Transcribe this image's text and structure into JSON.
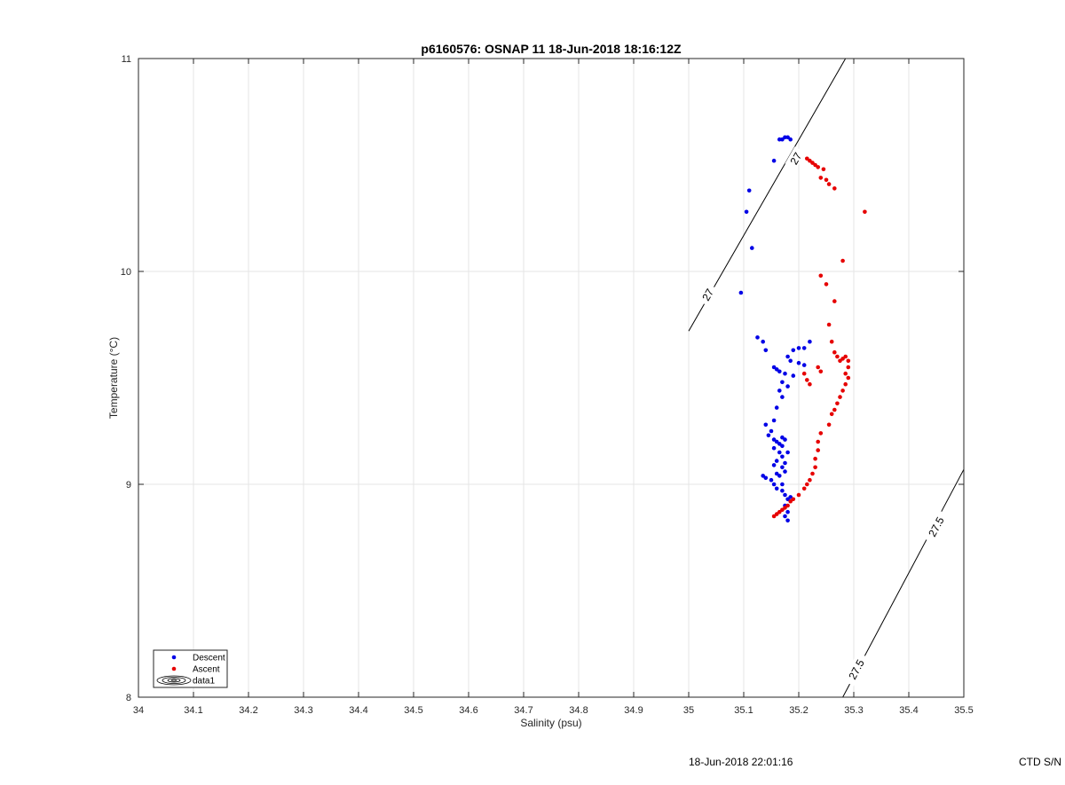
{
  "chart_data": {
    "type": "scatter",
    "title": "p6160576: OSNAP 11 18-Jun-2018 18:16:12Z",
    "xlabel": "Salinity (psu)",
    "ylabel": "Temperature (°C)",
    "xlim": [
      34,
      35.5
    ],
    "ylim": [
      8,
      11
    ],
    "x_ticks": [
      "34",
      "34.1",
      "34.2",
      "34.3",
      "34.4",
      "34.5",
      "34.6",
      "34.7",
      "34.8",
      "34.9",
      "35",
      "35.1",
      "35.2",
      "35.3",
      "35.4",
      "35.5"
    ],
    "y_ticks": [
      "8",
      "9",
      "10",
      "11"
    ],
    "grid": true,
    "legend_position": "bottom-left",
    "series": [
      {
        "name": "Descent",
        "color": "#0000e6",
        "points": [
          [
            35.17,
            10.62
          ],
          [
            35.175,
            10.63
          ],
          [
            35.18,
            10.63
          ],
          [
            35.185,
            10.62
          ],
          [
            35.165,
            10.62
          ],
          [
            35.155,
            10.52
          ],
          [
            35.11,
            10.38
          ],
          [
            35.105,
            10.28
          ],
          [
            35.115,
            10.11
          ],
          [
            35.095,
            9.9
          ],
          [
            35.125,
            9.69
          ],
          [
            35.135,
            9.67
          ],
          [
            35.14,
            9.63
          ],
          [
            35.19,
            9.63
          ],
          [
            35.2,
            9.64
          ],
          [
            35.21,
            9.64
          ],
          [
            35.22,
            9.67
          ],
          [
            35.18,
            9.6
          ],
          [
            35.185,
            9.58
          ],
          [
            35.155,
            9.55
          ],
          [
            35.16,
            9.54
          ],
          [
            35.165,
            9.53
          ],
          [
            35.175,
            9.52
          ],
          [
            35.19,
            9.51
          ],
          [
            35.2,
            9.57
          ],
          [
            35.21,
            9.56
          ],
          [
            35.17,
            9.48
          ],
          [
            35.18,
            9.46
          ],
          [
            35.165,
            9.44
          ],
          [
            35.17,
            9.41
          ],
          [
            35.16,
            9.36
          ],
          [
            35.155,
            9.3
          ],
          [
            35.15,
            9.25
          ],
          [
            35.14,
            9.28
          ],
          [
            35.145,
            9.23
          ],
          [
            35.155,
            9.21
          ],
          [
            35.16,
            9.2
          ],
          [
            35.165,
            9.19
          ],
          [
            35.17,
            9.22
          ],
          [
            35.175,
            9.21
          ],
          [
            35.155,
            9.17
          ],
          [
            35.165,
            9.15
          ],
          [
            35.17,
            9.13
          ],
          [
            35.16,
            9.11
          ],
          [
            35.155,
            9.09
          ],
          [
            35.17,
            9.08
          ],
          [
            35.175,
            9.06
          ],
          [
            35.165,
            9.04
          ],
          [
            35.15,
            9.02
          ],
          [
            35.14,
            9.03
          ],
          [
            35.135,
            9.04
          ],
          [
            35.155,
            9.0
          ],
          [
            35.16,
            8.98
          ],
          [
            35.17,
            8.97
          ],
          [
            35.175,
            8.95
          ],
          [
            35.18,
            8.93
          ],
          [
            35.175,
            8.9
          ],
          [
            35.18,
            8.87
          ],
          [
            35.175,
            8.85
          ],
          [
            35.18,
            8.83
          ],
          [
            35.185,
            8.94
          ],
          [
            35.17,
            9.0
          ],
          [
            35.16,
            9.05
          ],
          [
            35.175,
            9.1
          ],
          [
            35.18,
            9.15
          ],
          [
            35.17,
            9.18
          ]
        ]
      },
      {
        "name": "Ascent",
        "color": "#e60000",
        "points": [
          [
            35.215,
            10.53
          ],
          [
            35.22,
            10.52
          ],
          [
            35.225,
            10.51
          ],
          [
            35.23,
            10.5
          ],
          [
            35.235,
            10.49
          ],
          [
            35.245,
            10.48
          ],
          [
            35.24,
            10.44
          ],
          [
            35.25,
            10.43
          ],
          [
            35.255,
            10.41
          ],
          [
            35.265,
            10.39
          ],
          [
            35.32,
            10.28
          ],
          [
            35.28,
            10.05
          ],
          [
            35.24,
            9.98
          ],
          [
            35.25,
            9.94
          ],
          [
            35.265,
            9.86
          ],
          [
            35.255,
            9.75
          ],
          [
            35.26,
            9.67
          ],
          [
            35.265,
            9.62
          ],
          [
            35.27,
            9.6
          ],
          [
            35.275,
            9.58
          ],
          [
            35.28,
            9.59
          ],
          [
            35.285,
            9.6
          ],
          [
            35.29,
            9.58
          ],
          [
            35.29,
            9.55
          ],
          [
            35.285,
            9.52
          ],
          [
            35.29,
            9.5
          ],
          [
            35.285,
            9.47
          ],
          [
            35.28,
            9.44
          ],
          [
            35.275,
            9.41
          ],
          [
            35.27,
            9.38
          ],
          [
            35.265,
            9.35
          ],
          [
            35.26,
            9.33
          ],
          [
            35.255,
            9.28
          ],
          [
            35.24,
            9.24
          ],
          [
            35.235,
            9.2
          ],
          [
            35.235,
            9.16
          ],
          [
            35.23,
            9.12
          ],
          [
            35.23,
            9.08
          ],
          [
            35.225,
            9.05
          ],
          [
            35.22,
            9.02
          ],
          [
            35.215,
            9.0
          ],
          [
            35.21,
            8.98
          ],
          [
            35.2,
            8.95
          ],
          [
            35.19,
            8.93
          ],
          [
            35.185,
            8.92
          ],
          [
            35.18,
            8.9
          ],
          [
            35.175,
            8.89
          ],
          [
            35.17,
            8.88
          ],
          [
            35.165,
            8.87
          ],
          [
            35.16,
            8.86
          ],
          [
            35.155,
            8.85
          ],
          [
            35.21,
            9.52
          ],
          [
            35.215,
            9.49
          ],
          [
            35.22,
            9.47
          ],
          [
            35.235,
            9.55
          ],
          [
            35.24,
            9.53
          ]
        ]
      }
    ],
    "contours": [
      {
        "level": "27",
        "line": [
          [
            35.0,
            9.72
          ],
          [
            35.285,
            11.0
          ]
        ],
        "labels": [
          {
            "text": "27",
            "at": [
              35.035,
              9.89
            ]
          },
          {
            "text": "27",
            "at": [
              35.195,
              10.53
            ]
          }
        ]
      },
      {
        "level": "27.5",
        "line": [
          [
            35.28,
            8.0
          ],
          [
            35.5,
            9.07
          ]
        ],
        "labels": [
          {
            "text": "27.5",
            "at": [
              35.305,
              8.13
            ]
          },
          {
            "text": "27.5",
            "at": [
              35.45,
              8.8
            ]
          }
        ]
      }
    ],
    "legend": {
      "entries": [
        {
          "label": "Descent",
          "kind": "marker",
          "color": "#0000e6"
        },
        {
          "label": "Ascent",
          "kind": "marker",
          "color": "#e60000"
        },
        {
          "label": "data1",
          "kind": "contour-icon",
          "color": "#000000"
        }
      ]
    }
  },
  "footer": {
    "timestamp": "18-Jun-2018 22:01:16",
    "serial": "CTD S/N"
  }
}
